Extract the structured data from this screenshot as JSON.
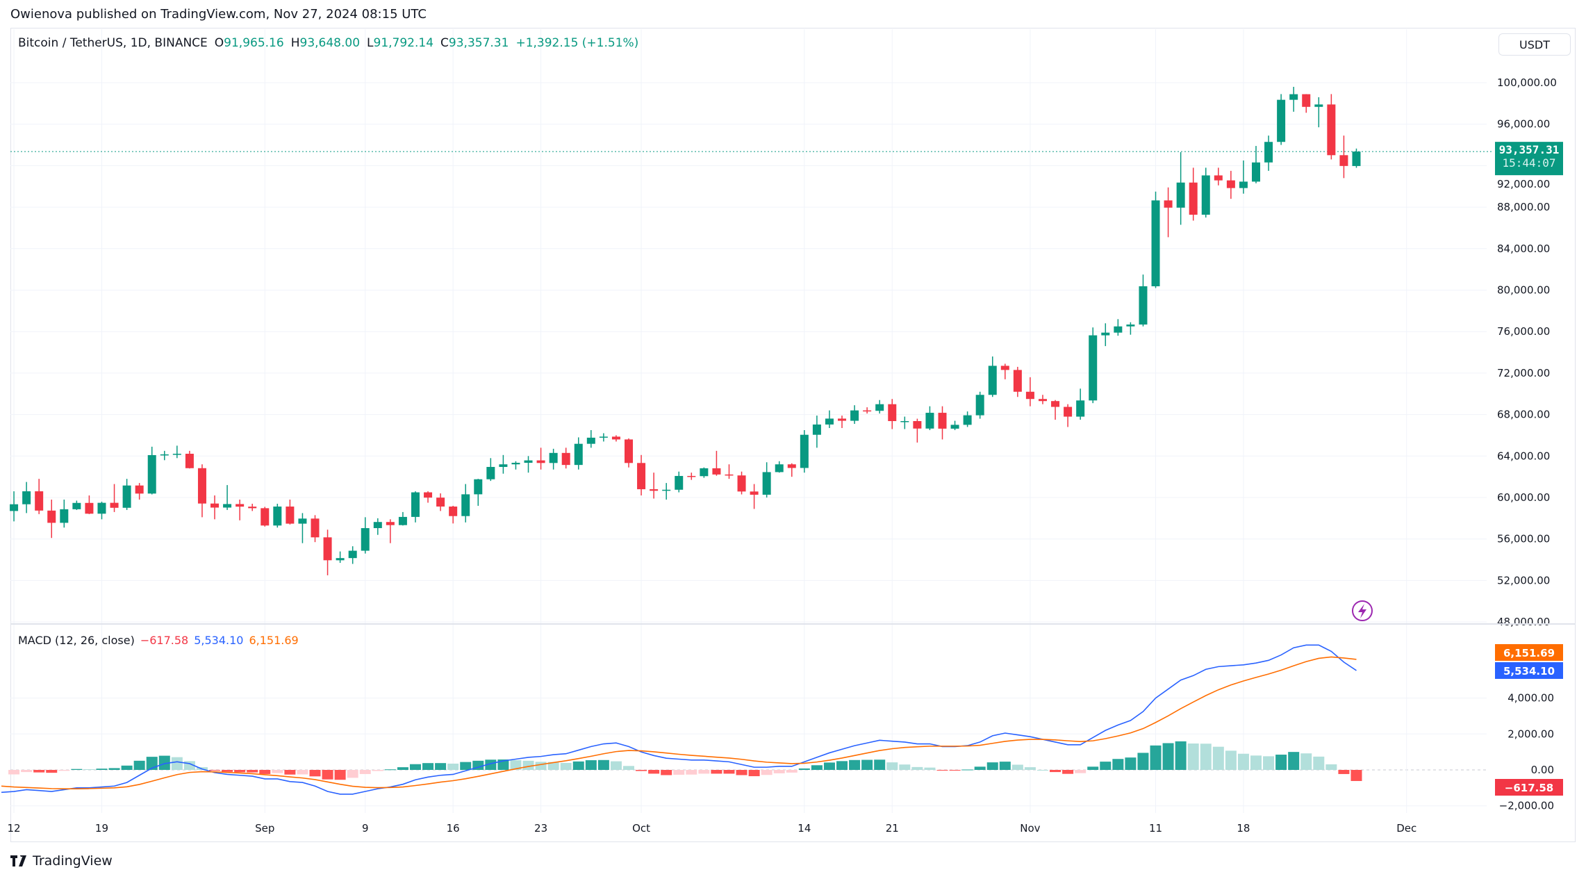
{
  "header": {
    "publish_line": "Owienova published on TradingView.com, Nov 27, 2024 08:15 UTC"
  },
  "legend": {
    "symbol": "Bitcoin / TetherUS, 1D, BINANCE",
    "open_key": "O",
    "open": "91,965.16",
    "high_key": "H",
    "high": "93,648.00",
    "low_key": "L",
    "low": "91,792.14",
    "close_key": "C",
    "close": "93,357.31",
    "change": "+1,392.15 (+1.51%)"
  },
  "currency_button": "USDT",
  "last_price_tag": {
    "price": "93,357.31",
    "countdown": "15:44:07"
  },
  "macd_legend": {
    "title": "MACD (12, 26, close)",
    "hist": "−617.58",
    "macd": "5,534.10",
    "signal": "6,151.69"
  },
  "macd_tags": {
    "signal": "6,151.69",
    "macd": "5,534.10",
    "hist": "−617.58"
  },
  "brand": {
    "name": "TradingView"
  },
  "colors": {
    "up": "#089981",
    "down": "#f23645",
    "macd": "#2962ff",
    "signal": "#ff6d00",
    "hist_up_strong": "#26a69a",
    "hist_up_weak": "#b2dfdb",
    "hist_down_strong": "#ff5252",
    "hist_down_weak": "#ffcdd2",
    "grid": "#f0f3fa"
  },
  "chart_data": [
    {
      "type": "candlestick",
      "title": "Bitcoin / TetherUS, 1D, BINANCE",
      "start_date": "2024-08-11",
      "ylim": [
        48000,
        102000
      ],
      "grid": true,
      "y_ticks": [
        "100,000.00",
        "96,000.00",
        "92,000.00",
        "88,000.00",
        "84,000.00",
        "80,000.00",
        "76,000.00",
        "72,000.00",
        "68,000.00",
        "64,000.00",
        "60,000.00",
        "56,000.00",
        "52,000.00",
        "48,000.00"
      ],
      "y_tick_values": [
        100000,
        96000,
        92000,
        88000,
        84000,
        80000,
        76000,
        72000,
        68000,
        64000,
        60000,
        56000,
        52000,
        48000
      ],
      "x_ticks": [
        {
          "label": "12",
          "date": "2024-08-12"
        },
        {
          "label": "19",
          "date": "2024-08-19"
        },
        {
          "label": "Sep",
          "date": "2024-09-01"
        },
        {
          "label": "9",
          "date": "2024-09-09"
        },
        {
          "label": "16",
          "date": "2024-09-16"
        },
        {
          "label": "23",
          "date": "2024-09-23"
        },
        {
          "label": "Oct",
          "date": "2024-10-01"
        },
        {
          "label": "14",
          "date": "2024-10-14"
        },
        {
          "label": "21",
          "date": "2024-10-21"
        },
        {
          "label": "Nov",
          "date": "2024-11-01"
        },
        {
          "label": "11",
          "date": "2024-11-11"
        },
        {
          "label": "18",
          "date": "2024-11-18"
        },
        {
          "label": "Dec",
          "date": "2024-12-01"
        }
      ],
      "last_price": 93357.31,
      "ohlc": [
        [
          60900,
          61800,
          58500,
          58700
        ],
        [
          58700,
          60600,
          57700,
          59350
        ],
        [
          59350,
          61500,
          58500,
          60600
        ],
        [
          60600,
          61800,
          58400,
          58740
        ],
        [
          58740,
          59800,
          56100,
          57560
        ],
        [
          57560,
          59800,
          57100,
          58870
        ],
        [
          58870,
          59700,
          58800,
          59480
        ],
        [
          59480,
          60200,
          58400,
          58440
        ],
        [
          58440,
          59600,
          57900,
          59490
        ],
        [
          59490,
          61300,
          58600,
          59010
        ],
        [
          59010,
          61800,
          58800,
          61160
        ],
        [
          61160,
          61400,
          59800,
          60380
        ],
        [
          60380,
          64900,
          60300,
          64090
        ],
        [
          64090,
          64500,
          63600,
          64160
        ],
        [
          64160,
          65000,
          63800,
          64220
        ],
        [
          64220,
          64500,
          62800,
          62830
        ],
        [
          62830,
          63200,
          58100,
          59420
        ],
        [
          59420,
          60200,
          57900,
          59030
        ],
        [
          59030,
          61200,
          58800,
          59370
        ],
        [
          59370,
          59800,
          57800,
          59120
        ],
        [
          59120,
          59400,
          58700,
          58970
        ],
        [
          58970,
          59100,
          57200,
          57300
        ],
        [
          57300,
          59400,
          57100,
          59130
        ],
        [
          59130,
          59800,
          57400,
          57480
        ],
        [
          57480,
          58500,
          55600,
          57970
        ],
        [
          57970,
          58300,
          55700,
          56160
        ],
        [
          56160,
          56900,
          52500,
          53950
        ],
        [
          53950,
          54800,
          53700,
          54160
        ],
        [
          54160,
          55300,
          53600,
          54870
        ],
        [
          54870,
          58100,
          54600,
          57050
        ],
        [
          57050,
          58000,
          56400,
          57640
        ],
        [
          57640,
          57900,
          55600,
          57340
        ],
        [
          57340,
          58600,
          57300,
          58130
        ],
        [
          58130,
          60600,
          57600,
          60500
        ],
        [
          60500,
          60600,
          59500,
          59990
        ],
        [
          59990,
          60400,
          58700,
          59130
        ],
        [
          59130,
          59200,
          57500,
          58210
        ],
        [
          58210,
          61300,
          57600,
          60310
        ],
        [
          60310,
          61800,
          59200,
          61760
        ],
        [
          61760,
          63800,
          61600,
          62950
        ],
        [
          62950,
          64100,
          62300,
          63200
        ],
        [
          63200,
          63500,
          62700,
          63350
        ],
        [
          63350,
          64000,
          62400,
          63580
        ],
        [
          63580,
          64800,
          62700,
          63330
        ],
        [
          63330,
          64700,
          62700,
          64300
        ],
        [
          64300,
          64800,
          62800,
          63140
        ],
        [
          63140,
          65800,
          62700,
          65180
        ],
        [
          65180,
          66500,
          64800,
          65770
        ],
        [
          65770,
          66200,
          65400,
          65870
        ],
        [
          65870,
          66000,
          65400,
          65600
        ],
        [
          65600,
          65700,
          62900,
          63330
        ],
        [
          63330,
          64100,
          60200,
          60800
        ],
        [
          60800,
          62400,
          59900,
          60650
        ],
        [
          60650,
          61400,
          59800,
          60750
        ],
        [
          60750,
          62500,
          60500,
          62080
        ],
        [
          62080,
          62400,
          61700,
          62060
        ],
        [
          62060,
          62900,
          61900,
          62820
        ],
        [
          62820,
          64500,
          62100,
          62220
        ],
        [
          62220,
          63200,
          61800,
          62130
        ],
        [
          62130,
          62500,
          60300,
          60580
        ],
        [
          60580,
          61300,
          58900,
          60270
        ],
        [
          60270,
          63400,
          60000,
          62450
        ],
        [
          62450,
          63500,
          62400,
          63200
        ],
        [
          63200,
          63300,
          62000,
          62850
        ],
        [
          62850,
          66500,
          62400,
          66050
        ],
        [
          66050,
          67900,
          64800,
          67040
        ],
        [
          67040,
          68400,
          66700,
          67610
        ],
        [
          67610,
          67900,
          66700,
          67400
        ],
        [
          67400,
          68900,
          67100,
          68400
        ],
        [
          68400,
          68700,
          68100,
          68360
        ],
        [
          68360,
          69400,
          68100,
          69000
        ],
        [
          69000,
          69500,
          66600,
          67370
        ],
        [
          67370,
          67800,
          66600,
          67370
        ],
        [
          67370,
          67600,
          65300,
          66650
        ],
        [
          66650,
          68800,
          66500,
          68170
        ],
        [
          68170,
          68800,
          65600,
          66640
        ],
        [
          66640,
          67400,
          66500,
          67010
        ],
        [
          67010,
          68300,
          66800,
          67930
        ],
        [
          67930,
          70200,
          67600,
          69900
        ],
        [
          69900,
          73600,
          69700,
          72700
        ],
        [
          72700,
          72900,
          71400,
          72300
        ],
        [
          72300,
          72600,
          69700,
          70200
        ],
        [
          70200,
          71600,
          68800,
          69500
        ],
        [
          69500,
          69900,
          69000,
          69300
        ],
        [
          69300,
          69400,
          67500,
          68740
        ],
        [
          68740,
          69000,
          66800,
          67800
        ],
        [
          67800,
          70500,
          67500,
          69360
        ],
        [
          69360,
          76400,
          69100,
          75640
        ],
        [
          75640,
          76800,
          74600,
          75900
        ],
        [
          75900,
          77200,
          75600,
          76500
        ],
        [
          76500,
          76900,
          75700,
          76680
        ],
        [
          76680,
          81500,
          76500,
          80370
        ],
        [
          80370,
          89500,
          80200,
          88650
        ],
        [
          88650,
          89900,
          85100,
          87950
        ],
        [
          87950,
          93300,
          86300,
          90370
        ],
        [
          90370,
          91800,
          86700,
          87270
        ],
        [
          87270,
          91800,
          87000,
          91060
        ],
        [
          91060,
          91800,
          90100,
          90580
        ],
        [
          90580,
          91500,
          88800,
          89840
        ],
        [
          89840,
          92500,
          89300,
          90460
        ],
        [
          90460,
          93900,
          90300,
          92310
        ],
        [
          92310,
          94900,
          91500,
          94290
        ],
        [
          94290,
          98900,
          94000,
          98350
        ],
        [
          98350,
          99600,
          97200,
          98890
        ],
        [
          98890,
          98900,
          97100,
          97670
        ],
        [
          97670,
          98600,
          95700,
          97900
        ],
        [
          97900,
          98900,
          92600,
          93010
        ],
        [
          93010,
          94900,
          90800,
          91970
        ],
        [
          91965.16,
          93648.0,
          91792.14,
          93357.31
        ]
      ]
    },
    {
      "type": "line+bar",
      "title": "MACD (12, 26, close)",
      "start_date": "2024-08-11",
      "ylim": [
        -2400,
        7400
      ],
      "y_ticks": [
        "4,000.00",
        "2,000.00",
        "0.00",
        "−2,000.00"
      ],
      "y_tick_values": [
        4000,
        2000,
        0,
        -2000
      ],
      "series": [
        {
          "name": "MACD",
          "values": [
            -1250,
            -1200,
            -1100,
            -1150,
            -1200,
            -1100,
            -1000,
            -1000,
            -950,
            -900,
            -700,
            -300,
            100,
            350,
            450,
            350,
            50,
            -150,
            -250,
            -300,
            -350,
            -500,
            -500,
            -650,
            -700,
            -900,
            -1200,
            -1350,
            -1350,
            -1200,
            -1050,
            -950,
            -800,
            -550,
            -400,
            -300,
            -250,
            -50,
            150,
            350,
            500,
            600,
            700,
            750,
            850,
            900,
            1100,
            1300,
            1450,
            1500,
            1300,
            1000,
            800,
            650,
            600,
            550,
            550,
            500,
            450,
            300,
            150,
            150,
            200,
            200,
            450,
            700,
            950,
            1150,
            1350,
            1500,
            1650,
            1600,
            1550,
            1450,
            1450,
            1300,
            1300,
            1350,
            1550,
            1900,
            2050,
            1950,
            1850,
            1700,
            1550,
            1400,
            1400,
            1800,
            2200,
            2500,
            2750,
            3250,
            4000,
            4500,
            5000,
            5250,
            5600,
            5750,
            5800,
            5850,
            5950,
            6100,
            6400,
            6800,
            6950,
            6950,
            6600,
            6000,
            5534.1
          ]
        },
        {
          "name": "Signal",
          "values": [
            -900,
            -950,
            -980,
            -1010,
            -1040,
            -1050,
            -1050,
            -1040,
            -1020,
            -1000,
            -940,
            -810,
            -630,
            -440,
            -260,
            -140,
            -100,
            -110,
            -140,
            -170,
            -210,
            -270,
            -320,
            -390,
            -450,
            -540,
            -670,
            -800,
            -910,
            -970,
            -990,
            -980,
            -950,
            -870,
            -780,
            -680,
            -600,
            -490,
            -360,
            -220,
            -80,
            60,
            190,
            300,
            410,
            510,
            630,
            760,
            900,
            1020,
            1080,
            1060,
            1010,
            940,
            870,
            810,
            760,
            710,
            660,
            590,
            500,
            430,
            390,
            350,
            370,
            440,
            540,
            660,
            800,
            940,
            1080,
            1180,
            1250,
            1290,
            1320,
            1320,
            1320,
            1330,
            1370,
            1480,
            1590,
            1660,
            1700,
            1700,
            1670,
            1620,
            1580,
            1620,
            1740,
            1890,
            2060,
            2300,
            2640,
            3010,
            3410,
            3780,
            4140,
            4460,
            4730,
            4950,
            5150,
            5340,
            5550,
            5800,
            6030,
            6210,
            6290,
            6230,
            6151.69
          ]
        }
      ]
    }
  ]
}
